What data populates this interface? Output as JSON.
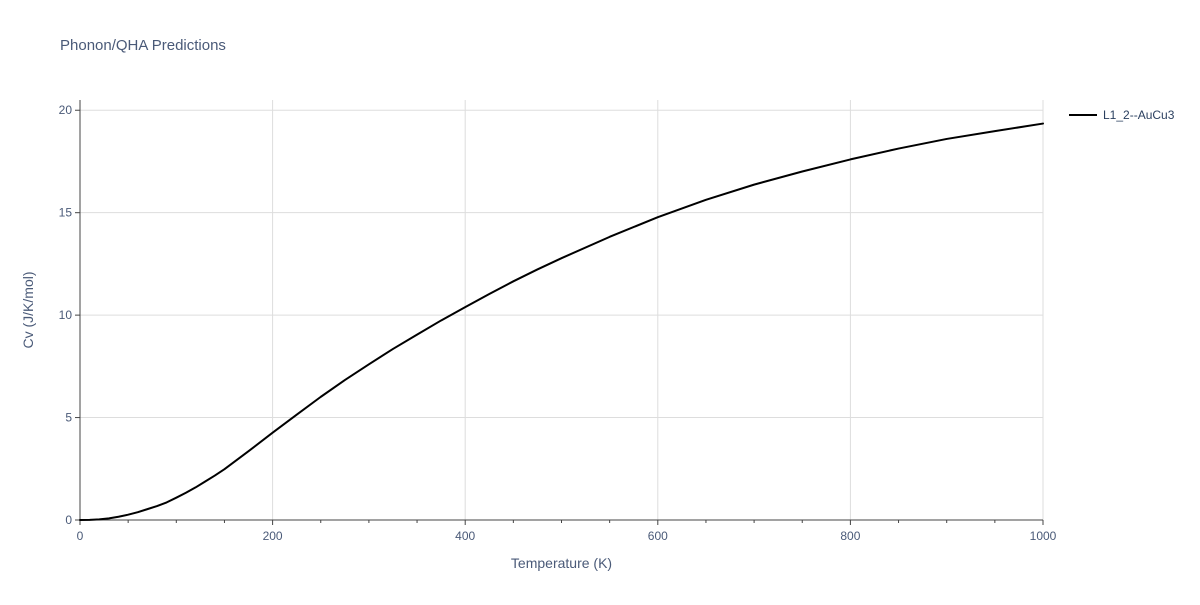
{
  "chart_data": {
    "type": "line",
    "title": "Phonon/QHA Predictions",
    "xlabel": "Temperature (K)",
    "ylabel": "Cv (J/K/mol)",
    "xlim": [
      0,
      1000
    ],
    "ylim": [
      0,
      20.5
    ],
    "x_ticks": [
      0,
      200,
      400,
      600,
      800,
      1000
    ],
    "x_tick_labels": [
      "0",
      "200",
      "400",
      "600",
      "800",
      "1000"
    ],
    "x_minor_ticks": [
      50,
      100,
      150,
      250,
      300,
      350,
      450,
      500,
      550,
      650,
      700,
      750,
      850,
      900,
      950
    ],
    "y_ticks": [
      0,
      5,
      10,
      15,
      20
    ],
    "y_tick_labels": [
      "0",
      "5",
      "10",
      "15",
      "20"
    ],
    "grid": true,
    "legend_position": "top-right",
    "series": [
      {
        "name": "L1_2--AuCu3",
        "color": "#000000",
        "x": [
          0,
          10,
          20,
          30,
          40,
          50,
          60,
          70,
          80,
          90,
          100,
          110,
          120,
          130,
          140,
          150,
          175,
          200,
          225,
          250,
          275,
          300,
          325,
          350,
          375,
          400,
          425,
          450,
          475,
          500,
          550,
          600,
          650,
          700,
          750,
          800,
          850,
          900,
          950,
          1000
        ],
        "values": [
          0,
          0.005,
          0.03,
          0.08,
          0.16,
          0.26,
          0.38,
          0.53,
          0.68,
          0.86,
          1.09,
          1.33,
          1.59,
          1.88,
          2.17,
          2.48,
          3.36,
          4.26,
          5.14,
          6.01,
          6.83,
          7.6,
          8.35,
          9.05,
          9.74,
          10.39,
          11.03,
          11.65,
          12.23,
          12.78,
          13.82,
          14.78,
          15.63,
          16.37,
          17.01,
          17.6,
          18.13,
          18.6,
          18.98,
          19.35
        ]
      }
    ]
  }
}
